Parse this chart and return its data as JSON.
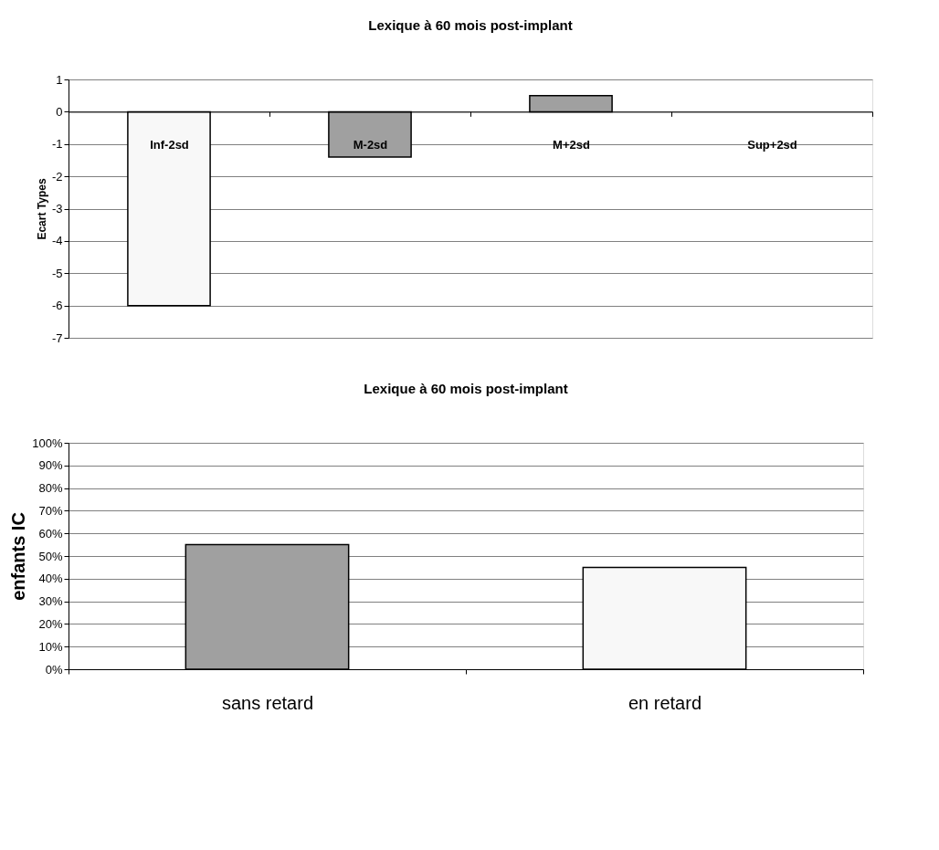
{
  "chart_data": [
    {
      "type": "bar",
      "title": "Lexique à 60 mois post-implant",
      "ylabel": "Ecart Types",
      "categories": [
        "Inf-2sd",
        "M-2sd",
        "M+2sd",
        "Sup+2sd"
      ],
      "values": [
        -6,
        -1.4,
        0.5,
        null
      ],
      "colors": [
        "#f8f8f8",
        "#a0a0a0",
        "#a0a0a0",
        "#a0a0a0"
      ],
      "ylim": [
        -7,
        1
      ],
      "yticks": [
        -7,
        -6,
        -5,
        -4,
        -3,
        -2,
        -1,
        0,
        1
      ],
      "grid": "y"
    },
    {
      "type": "bar",
      "title": "Lexique à 60 mois post-implant",
      "ylabel": "enfants IC",
      "categories": [
        "sans retard",
        "en retard"
      ],
      "values": [
        55,
        45
      ],
      "colors": [
        "#a0a0a0",
        "#f8f8f8"
      ],
      "ylim": [
        0,
        100
      ],
      "yticks": [
        {
          "value": 0,
          "label": "0%"
        },
        {
          "value": 10,
          "label": "10%"
        },
        {
          "value": 20,
          "label": "20%"
        },
        {
          "value": 30,
          "label": "30%"
        },
        {
          "value": 40,
          "label": "40%"
        },
        {
          "value": 50,
          "label": "50%"
        },
        {
          "value": 60,
          "label": "60%"
        },
        {
          "value": 70,
          "label": "70%"
        },
        {
          "value": 80,
          "label": "80%"
        },
        {
          "value": 90,
          "label": "90%"
        },
        {
          "value": 100,
          "label": "100%"
        }
      ],
      "grid": "y"
    }
  ]
}
